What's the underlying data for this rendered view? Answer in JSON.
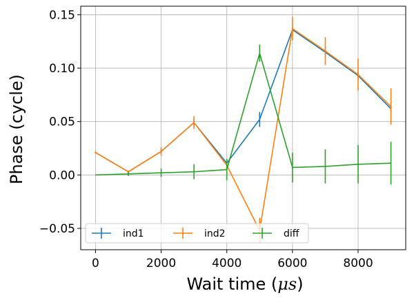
{
  "chart_data": {
    "type": "line",
    "x_label_prefix": "Wait time (",
    "x_label_math": "μs",
    "x_label_suffix": ")",
    "ylabel": "Phase (cycle)",
    "xlim": [
      -450,
      9450
    ],
    "ylim": [
      -0.07,
      0.158
    ],
    "grid": true,
    "legend_location": "lower-left",
    "x_ticks": [
      0,
      2000,
      4000,
      6000,
      8000
    ],
    "x_tick_labels": [
      "0",
      "2000",
      "4000",
      "6000",
      "8000"
    ],
    "y_ticks": [
      -0.05,
      0.0,
      0.05,
      0.1,
      0.15
    ],
    "y_tick_labels": [
      "−0.05",
      "0.00",
      "0.05",
      "0.10",
      "0.15"
    ],
    "x": [
      0,
      1000,
      2000,
      3000,
      4000,
      5000,
      6000,
      7000,
      8000,
      9000
    ],
    "series": [
      {
        "name": "ind1",
        "color": "#1f77b4",
        "values": [
          0.021,
          0.003,
          0.022,
          0.049,
          0.011,
          0.052,
          0.136,
          0.115,
          0.093,
          0.062
        ],
        "errors": [
          0.001,
          0.001,
          0.002,
          0.003,
          0.002,
          0.007,
          0.003,
          0.003,
          0.003,
          0.003
        ]
      },
      {
        "name": "ind2",
        "color": "#ff7f0e",
        "values": [
          0.021,
          0.003,
          0.022,
          0.049,
          0.009,
          -0.052,
          0.137,
          0.116,
          0.094,
          0.064
        ],
        "errors": [
          0.001,
          0.001,
          0.004,
          0.006,
          0.006,
          0.012,
          0.011,
          0.013,
          0.015,
          0.017
        ]
      },
      {
        "name": "diff",
        "color": "#2ca02c",
        "values": [
          0.0,
          0.001,
          0.002,
          0.003,
          0.005,
          0.114,
          0.007,
          0.008,
          0.01,
          0.011
        ],
        "errors": [
          0.0,
          0.002,
          0.004,
          0.007,
          0.01,
          0.008,
          0.014,
          0.016,
          0.018,
          0.02
        ]
      }
    ]
  }
}
